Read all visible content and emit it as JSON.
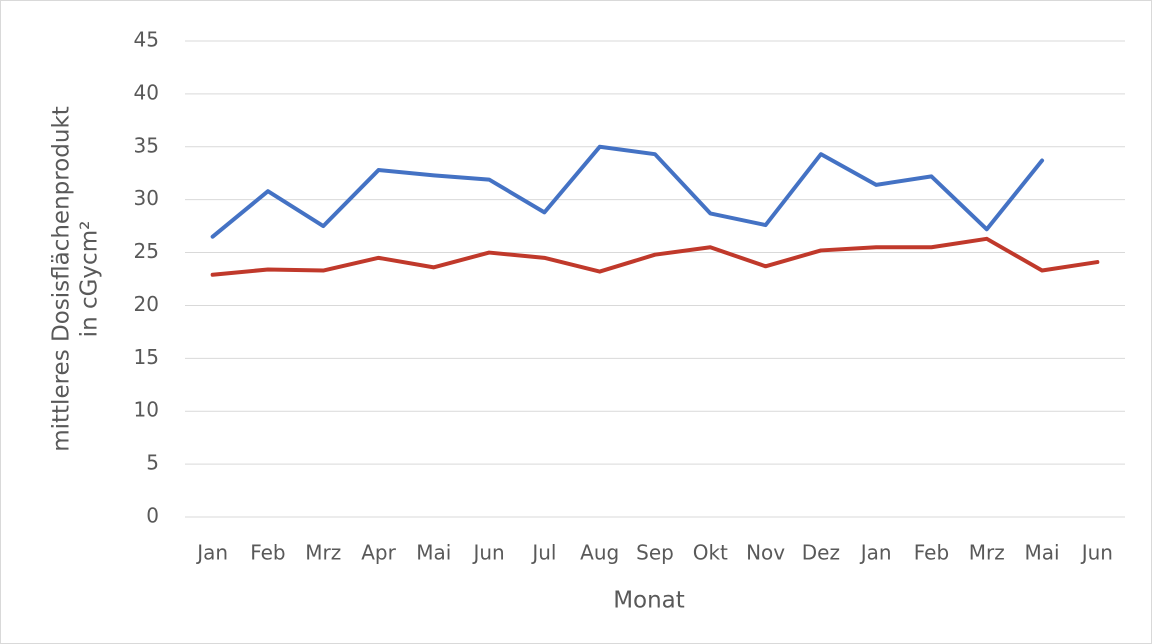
{
  "chart_data": {
    "type": "line",
    "ylabel": [
      "mittleres Dosisflächenprodukt",
      "in cGycm²"
    ],
    "xlabel": "Monat",
    "categories": [
      "Jan",
      "Feb",
      "Mrz",
      "Apr",
      "Mai",
      "Jun",
      "Jul",
      "Aug",
      "Sep",
      "Okt",
      "Nov",
      "Dez",
      "Jan",
      "Feb",
      "Mrz",
      "Mai",
      "Jun"
    ],
    "series": [
      {
        "color": "#4472c4",
        "values": [
          26.5,
          30.8,
          27.5,
          32.8,
          32.3,
          31.9,
          28.8,
          35.0,
          34.3,
          28.7,
          27.6,
          34.3,
          31.4,
          32.2,
          27.2,
          33.7,
          null
        ]
      },
      {
        "color": "#c0392b",
        "values": [
          22.9,
          23.4,
          23.3,
          24.5,
          23.6,
          25.0,
          24.5,
          23.2,
          24.8,
          25.5,
          23.7,
          25.2,
          25.5,
          25.5,
          26.3,
          23.3,
          24.1
        ]
      }
    ],
    "ylim": [
      0,
      45
    ],
    "yticks": [
      0,
      5,
      10,
      15,
      20,
      25,
      30,
      35,
      40,
      45
    ],
    "grid": true
  }
}
